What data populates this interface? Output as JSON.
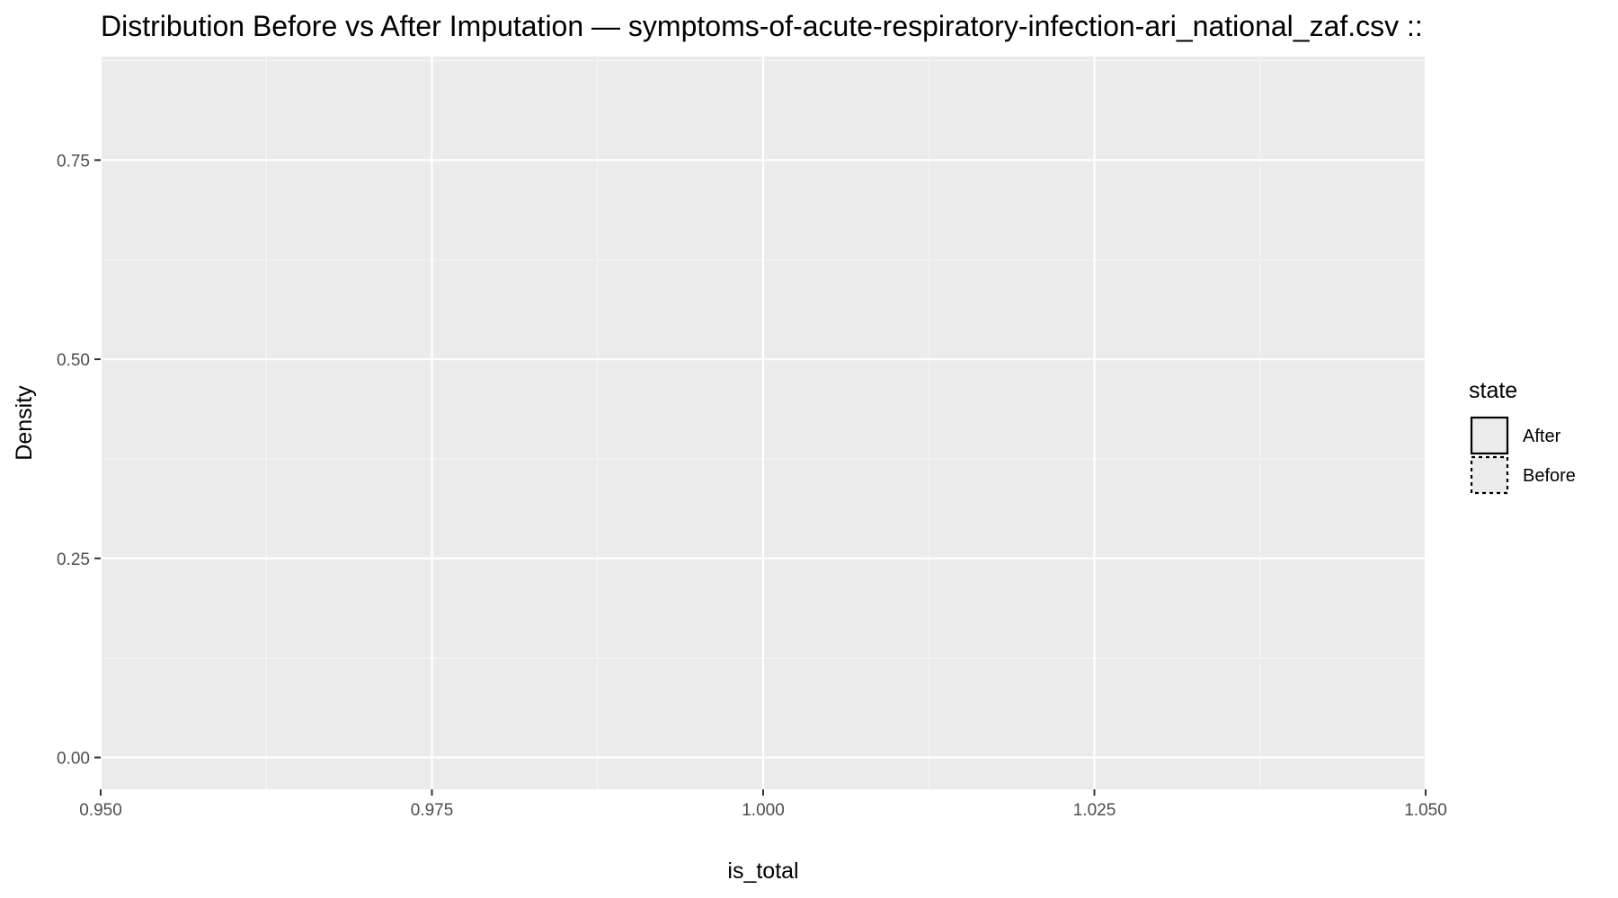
{
  "chart_data": {
    "type": "area",
    "title": "Distribution Before vs After Imputation — symptoms-of-acute-respiratory-infection-ari_national_zaf.csv ::",
    "xlabel": "is_total",
    "ylabel": "Density",
    "xlim": [
      0.95,
      1.05
    ],
    "ylim": [
      -0.04,
      0.88
    ],
    "x_ticks": [
      0.95,
      0.975,
      1.0,
      1.025,
      1.05
    ],
    "x_tick_labels": [
      "0.950",
      "0.975",
      "1.000",
      "1.025",
      "1.050"
    ],
    "y_ticks": [
      0.0,
      0.25,
      0.5,
      0.75
    ],
    "y_tick_labels": [
      "0.00",
      "0.25",
      "0.50",
      "0.75"
    ],
    "grid": true,
    "legend": {
      "title": "state",
      "placement": "right",
      "entries": [
        {
          "label": "After",
          "linetype": "solid"
        },
        {
          "label": "Before",
          "linetype": "dotted"
        }
      ]
    },
    "series": [
      {
        "name": "After",
        "x": [],
        "y": []
      },
      {
        "name": "Before",
        "x": [],
        "y": []
      }
    ],
    "colors": {
      "panel_background": "#ebebeb",
      "grid_major": "#ffffff",
      "grid_minor": "#f5f5f5",
      "tick_label": "#4d4d4d",
      "outline": "#000000",
      "legend_key_fill": "#ebebeb"
    }
  }
}
